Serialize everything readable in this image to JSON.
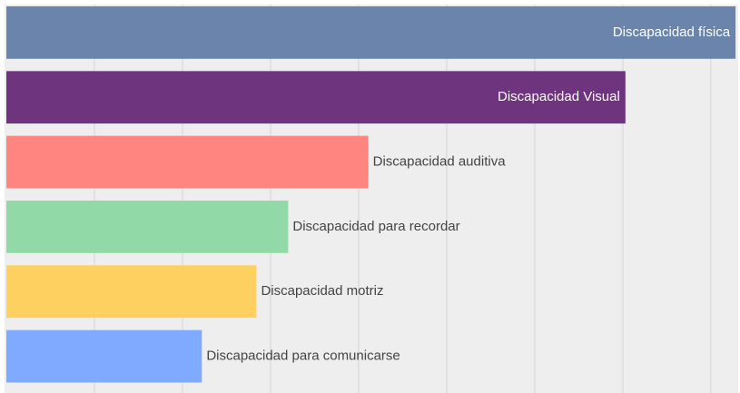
{
  "chart_data": {
    "type": "bar",
    "orientation": "horizontal",
    "categories": [
      "Discapacidad física",
      "Discapacidad Visual",
      "Discapacidad auditiva",
      "Discapacidad para recordar",
      "Discapacidad motriz",
      "Discapacidad para comunicarse"
    ],
    "values": [
      8.28,
      7.03,
      4.11,
      3.2,
      2.84,
      2.22
    ],
    "colors": [
      "#6a84ab",
      "#6e347e",
      "#ff8580",
      "#91d9a6",
      "#fdd05f",
      "#80aaff"
    ],
    "xlim": [
      0,
      8.3
    ],
    "xticks": [
      1,
      2,
      3,
      4,
      5,
      6,
      7,
      8
    ],
    "grid": true
  }
}
